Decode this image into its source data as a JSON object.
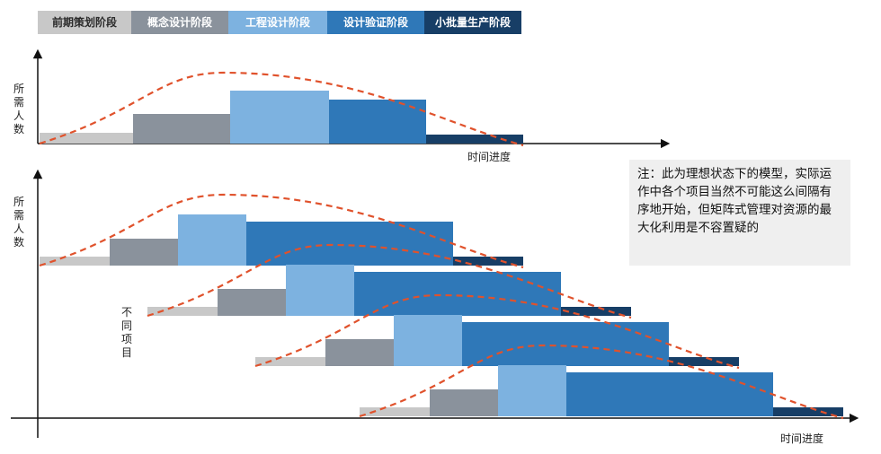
{
  "phases": [
    {
      "name": "前期策划阶段",
      "color": "#c8c8c8"
    },
    {
      "name": "概念设计阶段",
      "color": "#8a929c"
    },
    {
      "name": "工程设计阶段",
      "color": "#7db2e0"
    },
    {
      "name": "设计验证阶段",
      "color": "#2f78b8"
    },
    {
      "name": "小批量生产阶段",
      "color": "#173e66"
    }
  ],
  "curve_color": "#e0522c",
  "top_chart": {
    "ylabel": "所需人数",
    "xlabel": "时间进度",
    "levels": [
      0.12,
      0.33,
      0.59,
      0.49,
      0.1
    ]
  },
  "bottom_chart": {
    "ylabel": "所需人数",
    "xlabel": "时间进度",
    "project_label": "不同项目",
    "levels": [
      0.1,
      0.3,
      0.57,
      0.49,
      0.1
    ]
  },
  "note": "注：此为理想状态下的模型，实际运作中各个项目当然不可能这么间隔有序地开始，但矩阵式管理对资源的最大化利用是不容置疑的"
}
